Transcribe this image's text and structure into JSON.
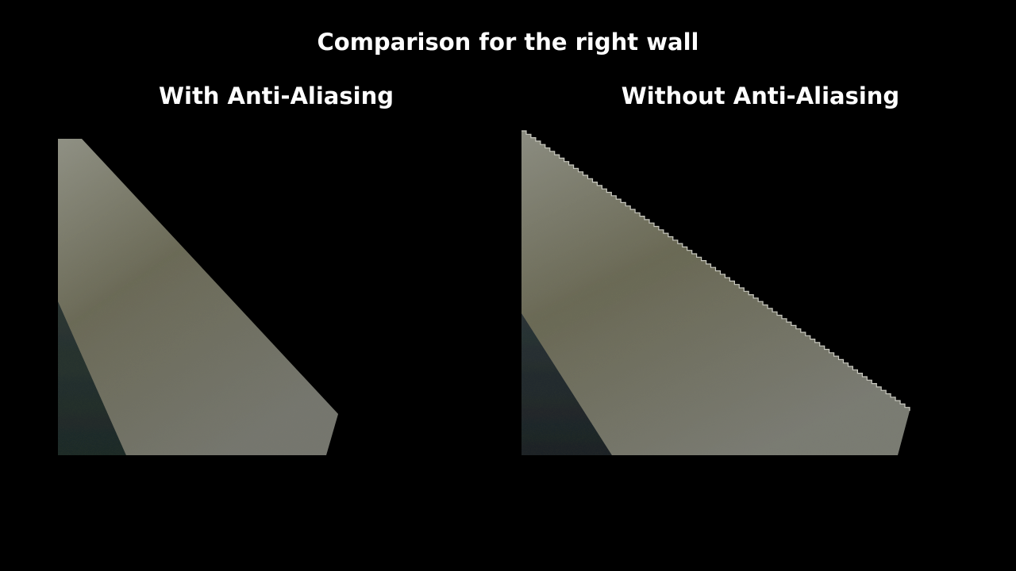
{
  "slide": {
    "title": "Comparison for the right wall",
    "panels": [
      {
        "heading": "With Anti-Aliasing",
        "image": "right-wall-smooth-edge"
      },
      {
        "heading": "Without Anti-Aliasing",
        "image": "right-wall-jagged-edge"
      }
    ],
    "colors": {
      "background": "#000000",
      "text": "#ffffff",
      "wall": "#6b6b5d",
      "wall_highlight": "#8f9085",
      "shadow_wall": "#24302f"
    }
  }
}
